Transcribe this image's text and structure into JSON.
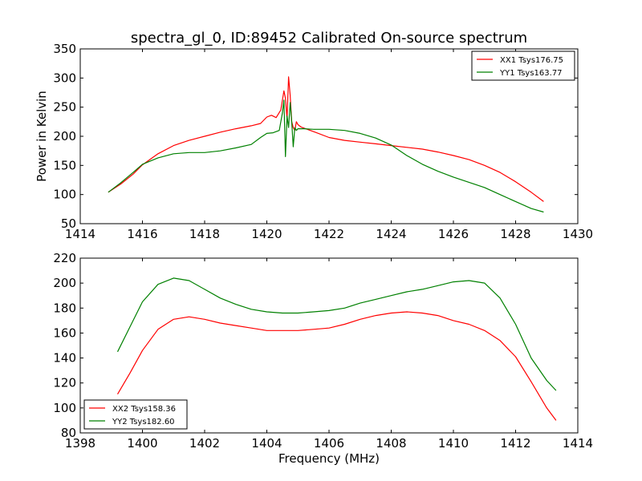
{
  "title": "spectra_gl_0, ID:89452 Calibrated On-source spectrum",
  "colors": {
    "red": "#ff0000",
    "green": "#008000",
    "frame": "#000000",
    "background": "#ffffff"
  },
  "chart_data": [
    {
      "type": "line",
      "title": "spectra_gl_0, ID:89452 Calibrated On-source spectrum",
      "xlabel": "",
      "ylabel": "Power in Kelvin",
      "xlim": [
        1414,
        1430
      ],
      "ylim": [
        50,
        350
      ],
      "xticks": [
        1414,
        1416,
        1418,
        1420,
        1422,
        1424,
        1426,
        1428,
        1430
      ],
      "yticks": [
        50,
        100,
        150,
        200,
        250,
        300,
        350
      ],
      "grid": false,
      "legend_position": "top-right",
      "series": [
        {
          "name": "XX1 Tsys176.75",
          "color": "#ff0000",
          "x": [
            1414.9,
            1415.3,
            1415.7,
            1416.0,
            1416.5,
            1417.0,
            1417.5,
            1418.0,
            1418.5,
            1419.0,
            1419.5,
            1419.8,
            1420.0,
            1420.15,
            1420.3,
            1420.45,
            1420.55,
            1420.6,
            1420.65,
            1420.7,
            1420.75,
            1420.8,
            1420.85,
            1420.9,
            1420.95,
            1421.0,
            1421.1,
            1421.3,
            1421.6,
            1422.0,
            1422.5,
            1423.0,
            1423.5,
            1424.0,
            1424.5,
            1425.0,
            1425.5,
            1426.0,
            1426.5,
            1427.0,
            1427.5,
            1428.0,
            1428.5,
            1428.9
          ],
          "y": [
            104,
            118,
            135,
            151,
            170,
            184,
            193,
            200,
            207,
            213,
            218,
            222,
            233,
            236,
            232,
            245,
            278,
            265,
            230,
            302,
            270,
            225,
            215,
            210,
            225,
            220,
            216,
            212,
            206,
            198,
            193,
            190,
            187,
            184,
            181,
            178,
            173,
            167,
            160,
            150,
            138,
            122,
            104,
            88
          ]
        },
        {
          "name": "YY1 Tsys163.77",
          "color": "#008000",
          "x": [
            1414.9,
            1415.3,
            1415.7,
            1416.0,
            1416.5,
            1417.0,
            1417.5,
            1418.0,
            1418.5,
            1419.0,
            1419.5,
            1419.8,
            1420.0,
            1420.2,
            1420.4,
            1420.5,
            1420.55,
            1420.6,
            1420.65,
            1420.7,
            1420.75,
            1420.8,
            1420.85,
            1420.9,
            1420.95,
            1421.0,
            1421.2,
            1421.5,
            1422.0,
            1422.5,
            1423.0,
            1423.5,
            1424.0,
            1424.5,
            1425.0,
            1425.5,
            1426.0,
            1426.5,
            1427.0,
            1427.5,
            1428.0,
            1428.5,
            1428.9
          ],
          "y": [
            104,
            120,
            138,
            152,
            163,
            170,
            172,
            172,
            175,
            180,
            186,
            198,
            205,
            206,
            210,
            240,
            262,
            165,
            235,
            215,
            258,
            225,
            182,
            215,
            210,
            213,
            213,
            212,
            212,
            210,
            205,
            197,
            185,
            167,
            152,
            140,
            130,
            121,
            112,
            100,
            88,
            76,
            70
          ]
        }
      ]
    },
    {
      "type": "line",
      "title": "",
      "xlabel": "Frequency (MHz)",
      "ylabel": "",
      "xlim": [
        1398,
        1414
      ],
      "ylim": [
        80,
        220
      ],
      "xticks": [
        1398,
        1400,
        1402,
        1404,
        1406,
        1408,
        1410,
        1412,
        1414
      ],
      "yticks": [
        80,
        100,
        120,
        140,
        160,
        180,
        200,
        220
      ],
      "grid": false,
      "legend_position": "bottom-left",
      "series": [
        {
          "name": "XX2 Tsys158.36",
          "color": "#ff0000",
          "x": [
            1399.2,
            1399.6,
            1400.0,
            1400.5,
            1401.0,
            1401.5,
            1402.0,
            1402.5,
            1403.0,
            1403.5,
            1404.0,
            1404.5,
            1405.0,
            1405.5,
            1406.0,
            1406.5,
            1407.0,
            1407.5,
            1408.0,
            1408.5,
            1409.0,
            1409.5,
            1410.0,
            1410.5,
            1411.0,
            1411.5,
            1412.0,
            1412.5,
            1413.0,
            1413.3
          ],
          "y": [
            111,
            128,
            146,
            163,
            171,
            173,
            171,
            168,
            166,
            164,
            162,
            162,
            162,
            163,
            164,
            167,
            171,
            174,
            176,
            177,
            176,
            174,
            170,
            167,
            162,
            154,
            141,
            121,
            100,
            90
          ]
        },
        {
          "name": "YY2 Tsys182.60",
          "color": "#008000",
          "x": [
            1399.2,
            1399.6,
            1400.0,
            1400.5,
            1401.0,
            1401.5,
            1402.0,
            1402.5,
            1403.0,
            1403.5,
            1404.0,
            1404.5,
            1405.0,
            1405.5,
            1406.0,
            1406.5,
            1407.0,
            1407.5,
            1408.0,
            1408.5,
            1409.0,
            1409.5,
            1410.0,
            1410.5,
            1411.0,
            1411.5,
            1412.0,
            1412.5,
            1413.0,
            1413.3
          ],
          "y": [
            145,
            165,
            185,
            199,
            204,
            202,
            195,
            188,
            183,
            179,
            177,
            176,
            176,
            177,
            178,
            180,
            184,
            187,
            190,
            193,
            195,
            198,
            201,
            202,
            200,
            188,
            167,
            140,
            122,
            114
          ]
        }
      ]
    }
  ]
}
